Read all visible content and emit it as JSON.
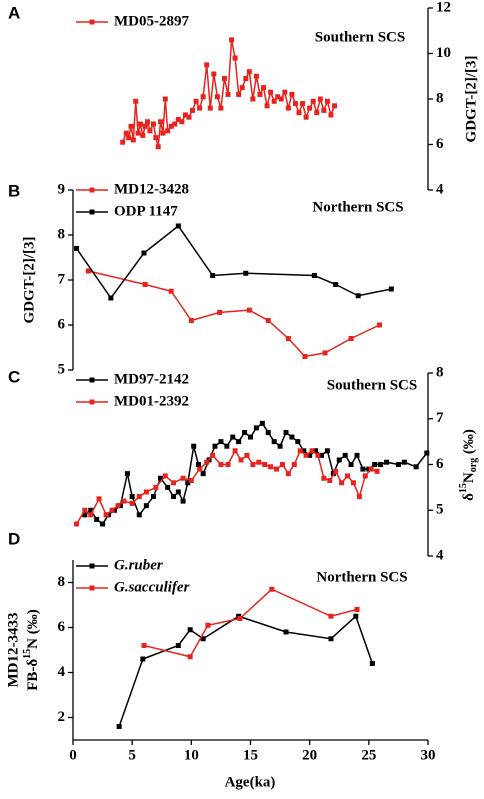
{
  "chart_data": [
    {
      "type": "line",
      "panel": "A",
      "title": "Southern SCS",
      "ylabel": "GDGT-[2]/[3]",
      "y_axis_side": "right",
      "xlim": [
        0,
        30
      ],
      "ylim": [
        4,
        12
      ],
      "yticks": [
        4,
        6,
        8,
        10,
        12
      ],
      "series": [
        {
          "name": "MD05-2897",
          "color": "#e8231e",
          "x": [
            4.2,
            4.5,
            4.7,
            4.9,
            5.1,
            5.3,
            5.5,
            5.7,
            5.9,
            6.1,
            6.3,
            6.5,
            6.8,
            7.0,
            7.2,
            7.4,
            7.6,
            7.8,
            8.0,
            8.3,
            8.6,
            8.9,
            9.2,
            9.5,
            9.8,
            10.1,
            10.4,
            10.7,
            11.0,
            11.3,
            11.6,
            11.9,
            12.2,
            12.5,
            12.8,
            13.1,
            13.4,
            13.7,
            14.0,
            14.3,
            14.6,
            14.9,
            15.2,
            15.5,
            15.8,
            16.1,
            16.4,
            16.7,
            17.0,
            17.3,
            17.6,
            17.9,
            18.2,
            18.5,
            18.8,
            19.1,
            19.4,
            19.7,
            20.0,
            20.3,
            20.6,
            20.9,
            21.2,
            21.5,
            21.8,
            22.1
          ],
          "values": [
            6.1,
            6.5,
            6.3,
            6.8,
            6.2,
            7.9,
            6.5,
            6.9,
            6.4,
            6.8,
            7.0,
            6.6,
            6.9,
            6.3,
            5.9,
            7.0,
            6.5,
            8.0,
            6.6,
            6.8,
            6.9,
            7.1,
            7.0,
            7.3,
            7.2,
            7.5,
            7.9,
            7.6,
            8.1,
            9.5,
            7.6,
            9.1,
            8.1,
            7.6,
            8.9,
            8.2,
            10.6,
            9.8,
            8.2,
            8.5,
            8.9,
            9.2,
            8.0,
            9.0,
            8.2,
            8.5,
            7.7,
            8.3,
            7.9,
            8.1,
            8.0,
            8.3,
            7.6,
            8.2,
            7.8,
            7.4,
            7.8,
            7.2,
            7.6,
            7.9,
            7.4,
            8.0,
            7.5,
            7.9,
            7.3,
            7.7
          ]
        }
      ]
    },
    {
      "type": "line",
      "panel": "B",
      "title": "Northern SCS",
      "ylabel": "GDGT-[2]/[3]",
      "y_axis_side": "left",
      "xlim": [
        0,
        30
      ],
      "ylim": [
        5,
        9
      ],
      "yticks": [
        5,
        6,
        7,
        8,
        9
      ],
      "series": [
        {
          "name": "MD12-3428",
          "color": "#e8231e",
          "x": [
            1.3,
            6.1,
            8.3,
            10.0,
            12.4,
            14.9,
            16.5,
            18.2,
            19.6,
            21.3,
            23.5,
            25.9
          ],
          "values": [
            7.2,
            6.9,
            6.75,
            6.1,
            6.28,
            6.33,
            6.1,
            5.7,
            5.3,
            5.38,
            5.7,
            6.0
          ]
        },
        {
          "name": "ODP 1147",
          "color": "#000000",
          "x": [
            0.3,
            3.2,
            6.0,
            8.9,
            11.8,
            14.6,
            20.4,
            22.2,
            24.1,
            26.9
          ],
          "values": [
            7.7,
            6.6,
            7.6,
            8.2,
            7.1,
            7.15,
            7.1,
            6.9,
            6.65,
            6.8
          ]
        }
      ]
    },
    {
      "type": "line",
      "panel": "C",
      "title": "Southern SCS",
      "ylabel": [
        "δ",
        "15",
        "N",
        "org",
        " (‰)"
      ],
      "y_axis_side": "right",
      "xlim": [
        0,
        30
      ],
      "ylim": [
        4,
        8
      ],
      "yticks": [
        4,
        5,
        6,
        7,
        8
      ],
      "series": [
        {
          "name": "MD97-2142",
          "color": "#000000",
          "x": [
            1.0,
            1.5,
            2.0,
            2.5,
            3.0,
            3.5,
            4.0,
            4.6,
            5.0,
            5.6,
            6.2,
            6.8,
            7.4,
            8.0,
            8.5,
            8.9,
            9.3,
            9.7,
            10.2,
            10.6,
            11.0,
            11.5,
            12.0,
            12.5,
            13.0,
            13.5,
            14.0,
            14.5,
            15.0,
            15.5,
            16.0,
            16.5,
            17.0,
            17.5,
            18.0,
            18.5,
            19.0,
            19.5,
            20.0,
            20.5,
            21.0,
            21.5,
            22.0,
            22.5,
            23.0,
            23.5,
            24.0,
            24.5,
            25.0,
            25.5,
            26.0,
            26.5,
            27.5,
            28.0,
            29.0,
            29.9
          ],
          "values": [
            4.9,
            5.0,
            4.8,
            4.7,
            4.9,
            5.0,
            5.1,
            5.8,
            5.3,
            4.9,
            5.1,
            5.3,
            5.7,
            5.5,
            5.3,
            5.4,
            5.2,
            5.6,
            6.4,
            6.0,
            5.8,
            6.1,
            6.4,
            6.5,
            6.4,
            6.6,
            6.5,
            6.7,
            6.6,
            6.8,
            6.9,
            6.7,
            6.5,
            6.4,
            6.7,
            6.6,
            6.5,
            6.3,
            6.2,
            6.3,
            6.2,
            6.3,
            5.8,
            6.1,
            6.2,
            6.0,
            6.2,
            5.9,
            5.9,
            6.0,
            6.0,
            6.05,
            6.0,
            6.05,
            5.95,
            6.25
          ]
        },
        {
          "name": "MD01-2392",
          "color": "#e8231e",
          "x": [
            0.3,
            1.0,
            1.5,
            2.2,
            2.8,
            3.3,
            3.8,
            4.3,
            5.0,
            5.6,
            6.2,
            7.0,
            7.8,
            8.5,
            9.3,
            10.0,
            10.7,
            11.3,
            11.8,
            12.5,
            13.1,
            13.7,
            14.2,
            14.7,
            15.2,
            15.7,
            16.2,
            16.7,
            17.2,
            17.7,
            18.2,
            18.7,
            19.2,
            19.7,
            20.2,
            20.7,
            21.2,
            21.7,
            22.2,
            22.7,
            23.2,
            23.7,
            24.2,
            24.7,
            25.2,
            25.7
          ],
          "values": [
            4.7,
            5.0,
            4.9,
            5.25,
            4.9,
            5.0,
            5.1,
            5.2,
            5.15,
            5.3,
            5.4,
            5.5,
            5.75,
            5.6,
            5.7,
            5.65,
            5.9,
            6.05,
            6.2,
            6.0,
            6.0,
            6.3,
            6.1,
            6.2,
            6.0,
            6.05,
            6.0,
            5.95,
            5.9,
            6.0,
            5.8,
            6.0,
            6.3,
            6.2,
            6.3,
            6.2,
            5.7,
            5.65,
            5.85,
            5.6,
            5.75,
            5.6,
            5.3,
            5.75,
            5.9,
            5.85
          ]
        }
      ]
    },
    {
      "type": "line",
      "panel": "D",
      "title": "Northern SCS",
      "ylabel": [
        "MD12-3433",
        "FB-δ",
        "15",
        "N (‰)"
      ],
      "y_axis_side": "left",
      "legend_italic": true,
      "xlabel": "Age(ka)",
      "xlim": [
        0,
        30
      ],
      "xticks": [
        0,
        5,
        10,
        15,
        20,
        25,
        30
      ],
      "ylim": [
        1,
        9
      ],
      "yticks": [
        2,
        4,
        6,
        8
      ],
      "series": [
        {
          "name": "G.ruber",
          "color": "#000000",
          "x": [
            3.9,
            5.9,
            8.9,
            9.9,
            11.0,
            14.0,
            18.0,
            21.8,
            23.9,
            25.3
          ],
          "values": [
            1.6,
            4.6,
            5.2,
            5.9,
            5.5,
            6.5,
            5.8,
            5.5,
            6.5,
            4.4
          ]
        },
        {
          "name": "G.sacculifer",
          "color": "#e8231e",
          "x": [
            6.0,
            9.9,
            11.4,
            14.1,
            16.8,
            21.8,
            24.0
          ],
          "values": [
            5.2,
            4.7,
            6.1,
            6.4,
            7.7,
            6.5,
            6.8
          ]
        }
      ]
    }
  ]
}
